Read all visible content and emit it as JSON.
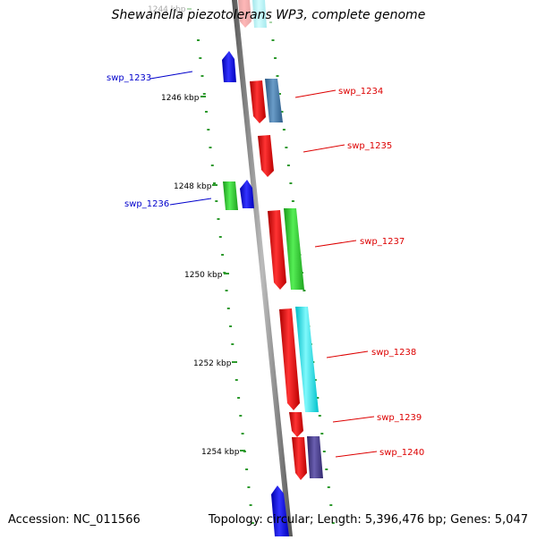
{
  "title": "Shewanella piezotolerans WP3, complete genome",
  "footer": {
    "accession": "Accession: NC_011566",
    "topology": "Topology: circular; Length: 5,396,476 bp; Genes: 5,047"
  },
  "scale_labels": [
    "1244 kbp",
    "1246 kbp",
    "1248 kbp",
    "1250 kbp",
    "1252 kbp",
    "1254 kbp"
  ],
  "gene_labels": [
    {
      "id": "g1233",
      "text": "swp_1233",
      "color": "#0000cc",
      "side": "left"
    },
    {
      "id": "g1234",
      "text": "swp_1234",
      "color": "#dd0000",
      "side": "right"
    },
    {
      "id": "g1235",
      "text": "swp_1235",
      "color": "#dd0000",
      "side": "right"
    },
    {
      "id": "g1236",
      "text": "swp_1236",
      "color": "#0000cc",
      "side": "left"
    },
    {
      "id": "g1237",
      "text": "swp_1237",
      "color": "#dd0000",
      "side": "right"
    },
    {
      "id": "g1238",
      "text": "swp_1238",
      "color": "#dd0000",
      "side": "right"
    },
    {
      "id": "g1239",
      "text": "swp_1239",
      "color": "#dd0000",
      "side": "right"
    },
    {
      "id": "g1240",
      "text": "swp_1240",
      "color": "#dd0000",
      "side": "right"
    }
  ],
  "colors": {
    "backbone": "#7a7a7a",
    "tick": "#2e9a2e",
    "red": "#ee1111",
    "blue": "#1111ee",
    "steelblue": "#4a7fb0",
    "green": "#33cc33",
    "cyan": "#22e6ee",
    "purple": "#4a3f8f"
  }
}
